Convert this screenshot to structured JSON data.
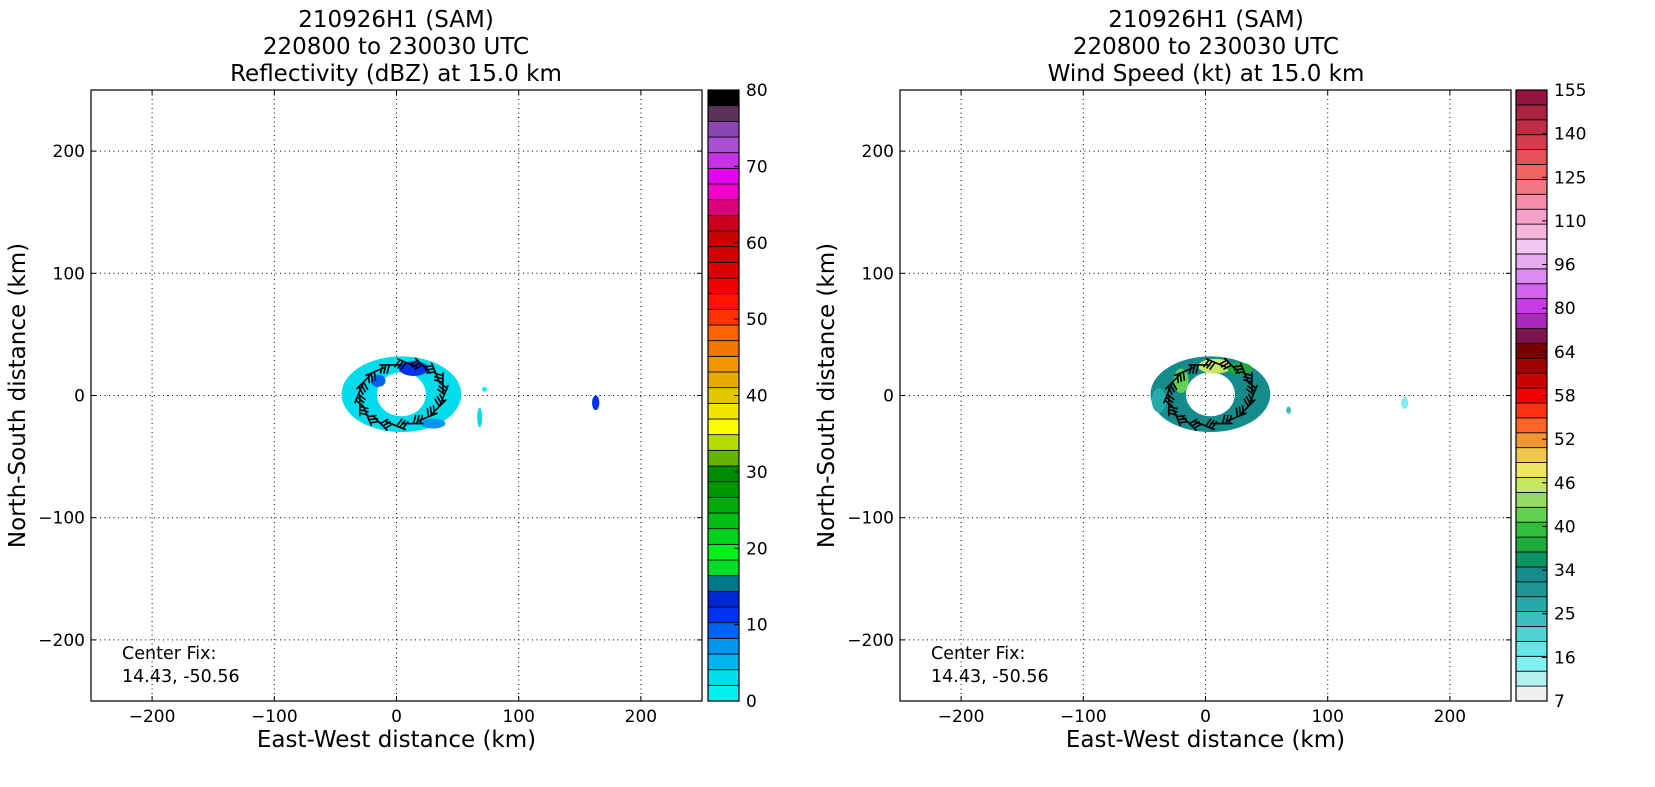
{
  "chart_data": [
    {
      "type": "heatmap",
      "title_lines": [
        "210926H1 (SAM)",
        "220800 to 230030 UTC",
        "Reflectivity (dBZ) at 15.0 km"
      ],
      "xlabel": "East-West distance (km)",
      "ylabel": "North-South distance (km)",
      "xlim": [
        -250,
        250
      ],
      "ylim": [
        -250,
        250
      ],
      "xticks": [
        -200,
        -100,
        0,
        100,
        200
      ],
      "xtick_labels": [
        "−200",
        "−100",
        "0",
        "100",
        "200"
      ],
      "yticks": [
        200,
        100,
        0,
        -100,
        -200
      ],
      "ytick_labels": [
        "200",
        "100",
        "0",
        "−100",
        "−200"
      ],
      "grid": true,
      "annotation_lines": [
        "Center Fix:",
        "14.43, -50.56"
      ],
      "data_description": "Annular echo around storm center with wind barbs overlaid, plus an isolated echo near x=163 km",
      "field_regions": [
        {
          "shape": "annulus",
          "cx": 4,
          "cy": 1,
          "outer_rx": 49,
          "outer_ry": 31,
          "inner_rx": 20,
          "inner_ry": 18,
          "value": 4
        },
        {
          "shape": "blob",
          "cx": 14,
          "cy": 22,
          "rx": 12,
          "ry": 6,
          "value": 11
        },
        {
          "shape": "blob",
          "cx": -15,
          "cy": 12,
          "rx": 6,
          "ry": 5,
          "value": 9
        },
        {
          "shape": "blob",
          "cx": 30,
          "cy": -23,
          "rx": 10,
          "ry": 4,
          "value": 8
        },
        {
          "shape": "blob",
          "cx": 163,
          "cy": -6,
          "rx": 3,
          "ry": 6,
          "value": 12
        },
        {
          "shape": "blob",
          "cx": 68,
          "cy": -18,
          "rx": 2,
          "ry": 8,
          "value": 3
        },
        {
          "shape": "blob",
          "cx": 72,
          "cy": 5,
          "rx": 2,
          "ry": 2,
          "value": 2
        }
      ],
      "colorbar": {
        "min": 0,
        "max": 80,
        "ticks": [
          0,
          10,
          20,
          30,
          40,
          50,
          60,
          70,
          80
        ],
        "colors": [
          "#00f0f0",
          "#00dcec",
          "#00b4f0",
          "#0096f0",
          "#0064f0",
          "#0032f5",
          "#0028d2",
          "#00788c",
          "#00dc28",
          "#00f01e",
          "#00d21e",
          "#00be14",
          "#00aa0a",
          "#009600",
          "#008c00",
          "#64b400",
          "#b4dc00",
          "#ffff00",
          "#f0e600",
          "#e6c800",
          "#e6aa00",
          "#f09600",
          "#f07800",
          "#ff6400",
          "#ff3200",
          "#ff1400",
          "#f00000",
          "#dc0000",
          "#d20000",
          "#c80000",
          "#c8001e",
          "#dc0078",
          "#f000c8",
          "#e600f0",
          "#c832e6",
          "#aa50d2",
          "#8c46b4",
          "#5a325a",
          "#000000"
        ]
      }
    },
    {
      "type": "heatmap",
      "title_lines": [
        "210926H1 (SAM)",
        "220800 to 230030 UTC",
        "Wind Speed (kt) at 15.0 km"
      ],
      "xlabel": "East-West distance (km)",
      "ylabel": "North-South distance (km)",
      "xlim": [
        -250,
        250
      ],
      "ylim": [
        -250,
        250
      ],
      "xticks": [
        -200,
        -100,
        0,
        100,
        200
      ],
      "xtick_labels": [
        "−200",
        "−100",
        "0",
        "100",
        "200"
      ],
      "yticks": [
        200,
        100,
        0,
        -100,
        -200
      ],
      "ytick_labels": [
        "200",
        "100",
        "0",
        "−100",
        "−200"
      ],
      "grid": true,
      "annotation_lines": [
        "Center Fix:",
        "14.43, -50.56"
      ],
      "data_description": "Annular wind field with strongest winds north and northwest of center, wind barbs overlaid",
      "field_regions": [
        {
          "shape": "annulus",
          "cx": 4,
          "cy": 1,
          "outer_rx": 49,
          "outer_ry": 31,
          "inner_rx": 20,
          "inner_ry": 18,
          "value": 38
        },
        {
          "shape": "blob",
          "cx": 8,
          "cy": 24,
          "rx": 14,
          "ry": 6,
          "value": 60
        },
        {
          "shape": "blob",
          "cx": -20,
          "cy": 12,
          "rx": 6,
          "ry": 10,
          "value": 55
        },
        {
          "shape": "blob",
          "cx": 28,
          "cy": 22,
          "rx": 10,
          "ry": 5,
          "value": 48
        },
        {
          "shape": "blob",
          "cx": -38,
          "cy": -4,
          "rx": 6,
          "ry": 10,
          "value": 31
        },
        {
          "shape": "blob",
          "cx": 163,
          "cy": -6,
          "rx": 3,
          "ry": 5,
          "value": 18
        },
        {
          "shape": "blob",
          "cx": 68,
          "cy": -12,
          "rx": 2,
          "ry": 3,
          "value": 28
        }
      ],
      "colorbar": {
        "min": 7,
        "max": 160,
        "ticks": [
          7,
          16,
          25,
          34,
          40,
          46,
          52,
          58,
          64,
          80,
          96,
          110,
          125,
          140,
          155
        ],
        "colors": [
          "#f0f0f0",
          "#b4f0f0",
          "#82f0f0",
          "#64e6e6",
          "#50d2d2",
          "#3cbebe",
          "#28aaaa",
          "#1e9696",
          "#148c8c",
          "#0a9664",
          "#1eaa3c",
          "#32be3c",
          "#64d250",
          "#96dc64",
          "#c8e664",
          "#f0e664",
          "#f0c850",
          "#f09632",
          "#ff6428",
          "#ff3214",
          "#f00000",
          "#c80000",
          "#a00000",
          "#780000",
          "#7d1450",
          "#aa28be",
          "#c83ce6",
          "#d264f0",
          "#dc8cf0",
          "#e6aaf0",
          "#f0c8f0",
          "#f5b4dc",
          "#f5a0c8",
          "#f58caa",
          "#f07882",
          "#f06464",
          "#e6505a",
          "#d23c4b",
          "#be2d46",
          "#aa2341",
          "#961441"
        ]
      }
    }
  ]
}
